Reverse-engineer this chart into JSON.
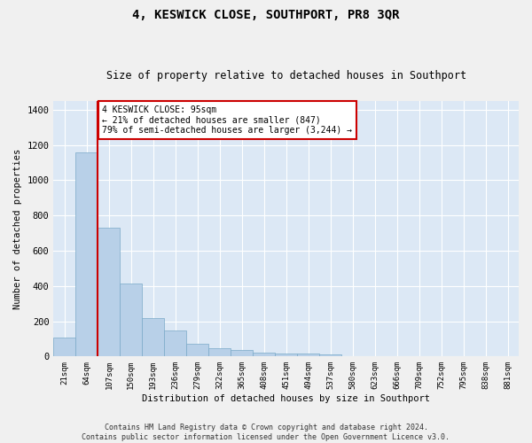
{
  "title": "4, KESWICK CLOSE, SOUTHPORT, PR8 3QR",
  "subtitle": "Size of property relative to detached houses in Southport",
  "xlabel": "Distribution of detached houses by size in Southport",
  "ylabel": "Number of detached properties",
  "bar_color": "#b8d0e8",
  "bar_edge_color": "#7aaac8",
  "background_color": "#dce8f5",
  "grid_color": "#ffffff",
  "categories": [
    "21sqm",
    "64sqm",
    "107sqm",
    "150sqm",
    "193sqm",
    "236sqm",
    "279sqm",
    "322sqm",
    "365sqm",
    "408sqm",
    "451sqm",
    "494sqm",
    "537sqm",
    "580sqm",
    "623sqm",
    "666sqm",
    "709sqm",
    "752sqm",
    "795sqm",
    "838sqm",
    "881sqm"
  ],
  "bar_heights": [
    105,
    1160,
    730,
    415,
    218,
    148,
    72,
    48,
    35,
    22,
    17,
    15,
    10,
    0,
    0,
    0,
    0,
    0,
    0,
    0,
    0
  ],
  "annotation_text": "4 KESWICK CLOSE: 95sqm\n← 21% of detached houses are smaller (847)\n79% of semi-detached houses are larger (3,244) →",
  "annotation_box_color": "#ffffff",
  "annotation_box_edge": "#cc0000",
  "vline_color": "#cc0000",
  "ylim": [
    0,
    1450
  ],
  "yticks": [
    0,
    200,
    400,
    600,
    800,
    1000,
    1200,
    1400
  ],
  "footer": "Contains HM Land Registry data © Crown copyright and database right 2024.\nContains public sector information licensed under the Open Government Licence v3.0.",
  "fig_width": 6.0,
  "fig_height": 5.0,
  "dpi": 100
}
